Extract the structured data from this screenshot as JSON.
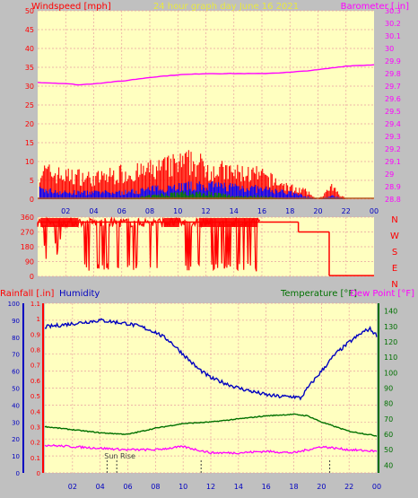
{
  "colors": {
    "background": "#c0c0c0",
    "plot_bg": "#ffffc0",
    "grid": "#e8a0a0",
    "wind": "#ff0000",
    "gust_blue": "#0000ff",
    "gust_green": "#008000",
    "barometer": "#ff00ff",
    "title": "#e8e840",
    "humidity": "#0000c0",
    "temperature": "#007000",
    "dewpoint": "#ff00ff",
    "rain": "#ff0000"
  },
  "header": {
    "left_label": "Windspeed [mph]",
    "title": "24 hour graph day   June 16 2021",
    "right_label": "Barometer [.in]"
  },
  "bottom_header": {
    "rain_label": "Rainfall [.in]",
    "humidity_label": "Humidity",
    "temperature_label": "Temperature [°F]",
    "dewpoint_label": "Dew Point [°F]"
  },
  "compass": [
    "N",
    "W",
    "S",
    "E",
    "N"
  ],
  "sunrise_label": "Sun Rise",
  "x_ticks": [
    "02",
    "04",
    "06",
    "08",
    "10",
    "12",
    "14",
    "16",
    "18",
    "20",
    "22",
    "00"
  ],
  "chart_data": [
    {
      "type": "line",
      "name": "wind-barometer",
      "x_range": [
        0,
        24
      ],
      "wind_ylim": [
        0,
        50
      ],
      "wind_ticks": [
        "0",
        "5",
        "10",
        "15",
        "20",
        "25",
        "30",
        "35",
        "40",
        "45",
        "50"
      ],
      "baro_ylim": [
        28.8,
        30.3
      ],
      "baro_ticks": [
        "28.8",
        "28.9",
        "29",
        "29.1",
        "29.2",
        "29.3",
        "29.4",
        "29.5",
        "29.6",
        "29.7",
        "29.8",
        "29.9",
        "30",
        "30.1",
        "30.2",
        "30.3"
      ],
      "barometer": {
        "x": [
          0,
          2,
          3,
          4,
          6,
          8,
          10,
          12,
          14,
          16,
          18,
          20,
          22,
          24
        ],
        "y": [
          29.73,
          29.72,
          29.71,
          29.72,
          29.74,
          29.77,
          29.79,
          29.8,
          29.8,
          29.8,
          29.81,
          29.83,
          29.86,
          29.87
        ]
      },
      "wind_gust_envelope": {
        "x": [
          0,
          1,
          2,
          3,
          4,
          5,
          6,
          7,
          8,
          9,
          10,
          11,
          12,
          13,
          14,
          15,
          16,
          17,
          18,
          19,
          20,
          21,
          21.5,
          22
        ],
        "y": [
          10,
          9,
          8,
          8,
          7,
          8,
          9,
          9,
          10,
          11,
          12,
          13,
          11,
          10,
          9,
          9,
          8,
          6,
          4,
          3,
          0,
          4,
          2,
          0
        ]
      },
      "wind_avg_envelope": {
        "x": [
          0,
          2,
          4,
          6,
          8,
          10,
          12,
          14,
          16,
          18,
          19,
          20,
          21,
          22
        ],
        "y": [
          3,
          2,
          2,
          2,
          3,
          4,
          4,
          4,
          3,
          2,
          1,
          0,
          1,
          0
        ]
      },
      "wind_min_envelope": {
        "x": [
          0,
          6,
          8,
          10,
          12,
          14,
          16,
          18,
          20
        ],
        "y": [
          0,
          0,
          1,
          2,
          2,
          1,
          1,
          0,
          0
        ]
      }
    },
    {
      "type": "line",
      "name": "wind-direction",
      "x_range": [
        0,
        24
      ],
      "ylim": [
        0,
        360
      ],
      "y_ticks": [
        "0",
        "90",
        "180",
        "270",
        "360"
      ],
      "segments": [
        {
          "x": [
            0,
            15.9
          ],
          "y": [
            330,
            330
          ]
        },
        {
          "x": [
            15.9,
            18.6
          ],
          "y": [
            330,
            330
          ]
        },
        {
          "x": [
            18.6,
            20.8
          ],
          "y": [
            270,
            270
          ]
        },
        {
          "x": [
            20.8,
            24
          ],
          "y": [
            5,
            5
          ]
        }
      ]
    },
    {
      "type": "line",
      "name": "climate",
      "x_range": [
        0,
        24
      ],
      "humidity_ylim": [
        0,
        100
      ],
      "humidity_ticks": [
        "0",
        "10",
        "20",
        "30",
        "40",
        "50",
        "60",
        "70",
        "80",
        "90",
        "100"
      ],
      "rain_ylim": [
        0,
        1.1
      ],
      "rain_ticks": [
        "0",
        "0.1",
        "0.2",
        "0.3",
        "0.4",
        "0.5",
        "0.6",
        "0.7",
        "0.8",
        "0.9",
        "1",
        "1.1"
      ],
      "temp_ylim": [
        35,
        145
      ],
      "temp_ticks": [
        "40",
        "50",
        "60",
        "70",
        "80",
        "90",
        "100",
        "110",
        "120",
        "130",
        "140"
      ],
      "series": [
        {
          "name": "Humidity",
          "x": [
            0,
            1,
            2,
            3,
            4,
            5,
            6,
            7,
            8,
            9,
            10,
            11,
            12,
            13,
            14,
            15,
            16,
            17,
            18,
            18.5,
            19,
            20,
            21,
            22,
            23,
            23.5,
            24
          ],
          "y": [
            86,
            87,
            88,
            89,
            90,
            89,
            88,
            86,
            83,
            78,
            70,
            62,
            56,
            53,
            50,
            48,
            46,
            45,
            45,
            44,
            50,
            60,
            70,
            77,
            83,
            85,
            81
          ]
        },
        {
          "name": "Temperature",
          "x": [
            0,
            2,
            4,
            6,
            7,
            8,
            10,
            12,
            14,
            16,
            18,
            19,
            20,
            22,
            24
          ],
          "y": [
            65,
            63,
            61,
            60,
            62,
            64,
            67,
            68,
            70,
            72,
            73,
            72,
            68,
            62,
            59
          ]
        },
        {
          "name": "Dew Point",
          "x": [
            0,
            2,
            4,
            6,
            8,
            10,
            11,
            12,
            14,
            16,
            18,
            20,
            21,
            22,
            24
          ],
          "y": [
            53,
            52,
            51,
            50,
            50,
            52,
            50,
            48,
            48,
            49,
            48,
            52,
            51,
            50,
            49
          ]
        }
      ],
      "rain_marks_x": [
        4.5,
        5.2,
        11.3,
        20.6
      ]
    }
  ]
}
